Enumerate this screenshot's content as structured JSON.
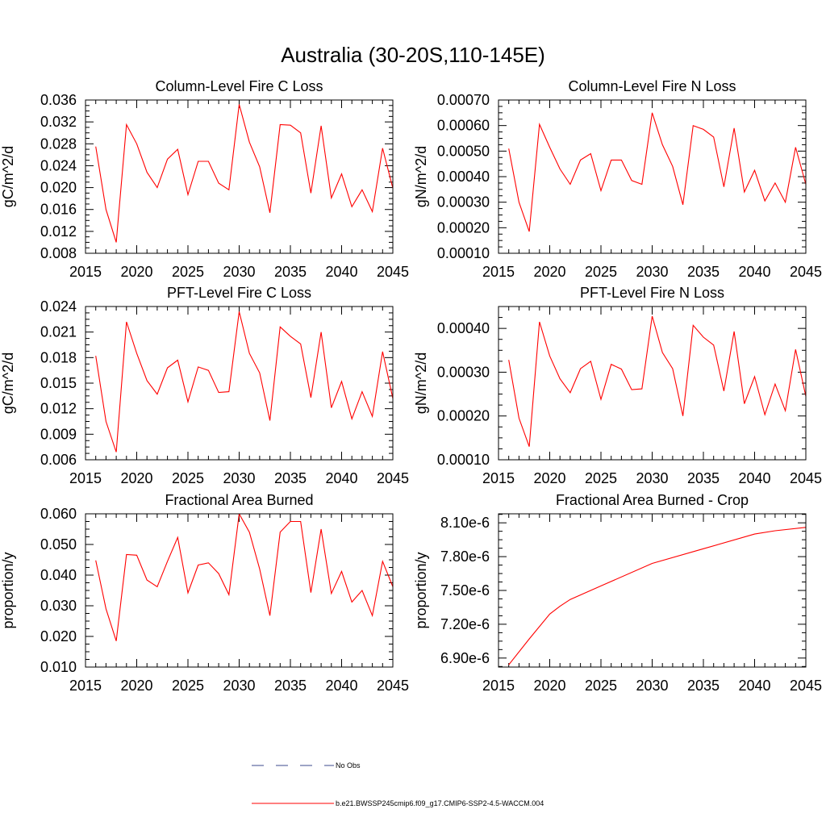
{
  "figure": {
    "title": "Australia (30-20S,110-145E)"
  },
  "legend": {
    "items": [
      {
        "label": "No Obs",
        "color": "#3b4a8c",
        "style": "dashed"
      },
      {
        "label": "b.e21.BWSSP245cmip6.f09_g17.CMIP6-SSP2-4.5-WACCM.004",
        "color": "#ff0000",
        "style": "solid"
      }
    ]
  },
  "colors": {
    "series": "#ff0000",
    "axis": "#000000"
  },
  "chart_data": [
    {
      "type": "line",
      "title": "Column-Level Fire C Loss",
      "ylabel": "gC/m^2/d",
      "xlim": [
        2015,
        2045
      ],
      "ylim": [
        0.008,
        0.036
      ],
      "xticks": [
        2015,
        2020,
        2025,
        2030,
        2035,
        2040,
        2045
      ],
      "yticks": [
        "0.008",
        "0.012",
        "0.016",
        "0.020",
        "0.024",
        "0.028",
        "0.032",
        "0.036"
      ],
      "x": [
        2016,
        2017,
        2018,
        2019,
        2020,
        2021,
        2022,
        2023,
        2024,
        2025,
        2026,
        2027,
        2028,
        2029,
        2030,
        2031,
        2032,
        2033,
        2034,
        2035,
        2036,
        2037,
        2038,
        2039,
        2040,
        2041,
        2042,
        2043,
        2044,
        2045
      ],
      "series": [
        {
          "name": "b.e21.BWSSP245cmip6.f09_g17.CMIP6-SSP2-4.5-WACCM.004",
          "values": [
            0.0275,
            0.016,
            0.01,
            0.0315,
            0.028,
            0.0228,
            0.02,
            0.0252,
            0.027,
            0.0187,
            0.0248,
            0.0248,
            0.0208,
            0.0196,
            0.0352,
            0.0283,
            0.0238,
            0.0154,
            0.0315,
            0.0314,
            0.03,
            0.019,
            0.0313,
            0.0181,
            0.0225,
            0.0165,
            0.0196,
            0.0156,
            0.0272,
            0.0199
          ]
        }
      ]
    },
    {
      "type": "line",
      "title": "Column-Level Fire N Loss",
      "ylabel": "gN/m^2/d",
      "xlim": [
        2015,
        2045
      ],
      "ylim": [
        0.0001,
        0.0007
      ],
      "xticks": [
        2015,
        2020,
        2025,
        2030,
        2035,
        2040,
        2045
      ],
      "yticks": [
        "0.00010",
        "0.00020",
        "0.00030",
        "0.00040",
        "0.00050",
        "0.00060",
        "0.00070"
      ],
      "x": [
        2016,
        2017,
        2018,
        2019,
        2020,
        2021,
        2022,
        2023,
        2024,
        2025,
        2026,
        2027,
        2028,
        2029,
        2030,
        2031,
        2032,
        2033,
        2034,
        2035,
        2036,
        2037,
        2038,
        2039,
        2040,
        2041,
        2042,
        2043,
        2044,
        2045
      ],
      "series": [
        {
          "name": "b.e21.BWSSP245cmip6.f09_g17.CMIP6-SSP2-4.5-WACCM.004",
          "values": [
            0.00051,
            0.0003,
            0.000185,
            0.000605,
            0.000515,
            0.00043,
            0.00037,
            0.000465,
            0.00049,
            0.000345,
            0.000465,
            0.000465,
            0.000385,
            0.00037,
            0.00065,
            0.000525,
            0.00044,
            0.00029,
            0.0006,
            0.000585,
            0.000555,
            0.00036,
            0.00059,
            0.00034,
            0.000425,
            0.000305,
            0.000375,
            0.0003,
            0.000515,
            0.00037
          ]
        }
      ]
    },
    {
      "type": "line",
      "title": "PFT-Level Fire C Loss",
      "ylabel": "gC/m^2/d",
      "xlim": [
        2015,
        2045
      ],
      "ylim": [
        0.006,
        0.024
      ],
      "xticks": [
        2015,
        2020,
        2025,
        2030,
        2035,
        2040,
        2045
      ],
      "yticks": [
        "0.006",
        "0.009",
        "0.012",
        "0.015",
        "0.018",
        "0.021",
        "0.024"
      ],
      "x": [
        2016,
        2017,
        2018,
        2019,
        2020,
        2021,
        2022,
        2023,
        2024,
        2025,
        2026,
        2027,
        2028,
        2029,
        2030,
        2031,
        2032,
        2033,
        2034,
        2035,
        2036,
        2037,
        2038,
        2039,
        2040,
        2041,
        2042,
        2043,
        2044,
        2045
      ],
      "series": [
        {
          "name": "b.e21.BWSSP245cmip6.f09_g17.CMIP6-SSP2-4.5-WACCM.004",
          "values": [
            0.0182,
            0.0105,
            0.0069,
            0.0222,
            0.0185,
            0.0153,
            0.0137,
            0.0168,
            0.0177,
            0.0128,
            0.0169,
            0.0165,
            0.0139,
            0.014,
            0.0234,
            0.0185,
            0.0162,
            0.0106,
            0.0216,
            0.0205,
            0.0196,
            0.0133,
            0.021,
            0.0121,
            0.0152,
            0.0108,
            0.014,
            0.0111,
            0.0187,
            0.0132
          ]
        }
      ]
    },
    {
      "type": "line",
      "title": "PFT-Level Fire N Loss",
      "ylabel": "gN/m^2/d",
      "xlim": [
        2015,
        2045
      ],
      "ylim": [
        0.0001,
        0.00045
      ],
      "xticks": [
        2015,
        2020,
        2025,
        2030,
        2035,
        2040,
        2045
      ],
      "yticks": [
        "0.00010",
        "0.00020",
        "0.00030",
        "0.00040"
      ],
      "ytick_values": [
        0.0001,
        0.0002,
        0.0003,
        0.0004
      ],
      "x": [
        2016,
        2017,
        2018,
        2019,
        2020,
        2021,
        2022,
        2023,
        2024,
        2025,
        2026,
        2027,
        2028,
        2029,
        2030,
        2031,
        2032,
        2033,
        2034,
        2035,
        2036,
        2037,
        2038,
        2039,
        2040,
        2041,
        2042,
        2043,
        2044,
        2045
      ],
      "series": [
        {
          "name": "b.e21.BWSSP245cmip6.f09_g17.CMIP6-SSP2-4.5-WACCM.004",
          "values": [
            0.000328,
            0.000195,
            0.00013,
            0.000415,
            0.000337,
            0.000285,
            0.000253,
            0.000308,
            0.000325,
            0.000238,
            0.000318,
            0.000307,
            0.00026,
            0.000262,
            0.000428,
            0.000345,
            0.000308,
            0.0002,
            0.000407,
            0.00038,
            0.000362,
            0.000257,
            0.000393,
            0.000228,
            0.00029,
            0.000203,
            0.000273,
            0.000212,
            0.000352,
            0.000245
          ]
        }
      ]
    },
    {
      "type": "line",
      "title": "Fractional Area Burned",
      "ylabel": "proportion/y",
      "xlim": [
        2015,
        2045
      ],
      "ylim": [
        0.01,
        0.06
      ],
      "xticks": [
        2015,
        2020,
        2025,
        2030,
        2035,
        2040,
        2045
      ],
      "yticks": [
        "0.010",
        "0.020",
        "0.030",
        "0.040",
        "0.050",
        "0.060"
      ],
      "x": [
        2016,
        2017,
        2018,
        2019,
        2020,
        2021,
        2022,
        2023,
        2024,
        2025,
        2026,
        2027,
        2028,
        2029,
        2030,
        2031,
        2032,
        2033,
        2034,
        2035,
        2036,
        2037,
        2038,
        2039,
        2040,
        2041,
        2042,
        2043,
        2044,
        2045
      ],
      "series": [
        {
          "name": "b.e21.BWSSP245cmip6.f09_g17.CMIP6-SSP2-4.5-WACCM.004",
          "values": [
            0.0448,
            0.029,
            0.0185,
            0.0467,
            0.0465,
            0.0384,
            0.0362,
            0.0445,
            0.0523,
            0.0342,
            0.0433,
            0.044,
            0.0405,
            0.0336,
            0.06,
            0.054,
            0.042,
            0.0268,
            0.054,
            0.0575,
            0.0575,
            0.0343,
            0.055,
            0.034,
            0.0412,
            0.0312,
            0.035,
            0.0268,
            0.0445,
            0.0362
          ]
        }
      ]
    },
    {
      "type": "line",
      "title": "Fractional Area Burned - Crop",
      "ylabel": "proportion/y",
      "xlim": [
        2015,
        2045
      ],
      "ylim": [
        6.82e-06,
        8.18e-06
      ],
      "xticks": [
        2015,
        2020,
        2025,
        2030,
        2035,
        2040,
        2045
      ],
      "yticks": [
        "6.90e-6",
        "7.20e-6",
        "7.50e-6",
        "7.80e-6",
        "8.10e-6"
      ],
      "ytick_values": [
        6.9e-06,
        7.2e-06,
        7.5e-06,
        7.8e-06,
        8.1e-06
      ],
      "x": [
        2016,
        2018,
        2020,
        2021,
        2022,
        2025,
        2030,
        2035,
        2040,
        2042,
        2045
      ],
      "series": [
        {
          "name": "b.e21.BWSSP245cmip6.f09_g17.CMIP6-SSP2-4.5-WACCM.004",
          "values": [
            6.84e-06,
            7.07e-06,
            7.29e-06,
            7.36e-06,
            7.42e-06,
            7.54e-06,
            7.74e-06,
            7.87e-06,
            8e-06,
            8.03e-06,
            8.06e-06
          ]
        }
      ]
    }
  ]
}
